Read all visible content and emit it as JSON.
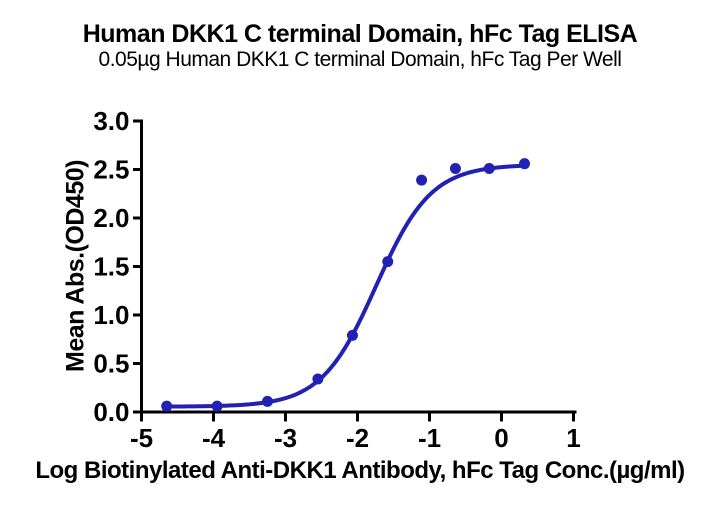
{
  "chart_data": {
    "type": "scatter",
    "title": "Human DKK1 C terminal Domain, hFc Tag ELISA",
    "subtitle": "0.05µg Human DKK1 C terminal Domain, hFc Tag Per Well",
    "xlabel": "Log Biotinylated Anti-DKK1 Antibody, hFc Tag Conc.(µg/ml)",
    "ylabel": "Mean Abs.(OD450)",
    "xlim": [
      -5,
      1
    ],
    "ylim": [
      0.0,
      3.0
    ],
    "x_ticks": [
      -5,
      -4,
      -3,
      -2,
      -1,
      0,
      1
    ],
    "y_ticks": [
      0.0,
      0.5,
      1.0,
      1.5,
      2.0,
      2.5,
      3.0
    ],
    "grid": false,
    "legend_position": "none",
    "axis_color": "#000000",
    "series": [
      {
        "name": "Biotinylated Anti-DKK1 Antibody, hFc Tag",
        "color": "#2222b2",
        "marker": "circle",
        "points": [
          {
            "x": -4.65,
            "y": 0.06
          },
          {
            "x": -3.95,
            "y": 0.06
          },
          {
            "x": -3.25,
            "y": 0.11
          },
          {
            "x": -2.55,
            "y": 0.34
          },
          {
            "x": -2.07,
            "y": 0.79
          },
          {
            "x": -1.58,
            "y": 1.55
          },
          {
            "x": -1.11,
            "y": 2.39
          },
          {
            "x": -0.64,
            "y": 2.51
          },
          {
            "x": -0.17,
            "y": 2.51
          },
          {
            "x": 0.32,
            "y": 2.56
          }
        ],
        "fit_curve_4pl": {
          "bottom": 0.055,
          "top": 2.55,
          "logEC50": -1.74,
          "hill": 1.14,
          "x_start": -4.65,
          "x_end": 0.32
        }
      }
    ]
  }
}
